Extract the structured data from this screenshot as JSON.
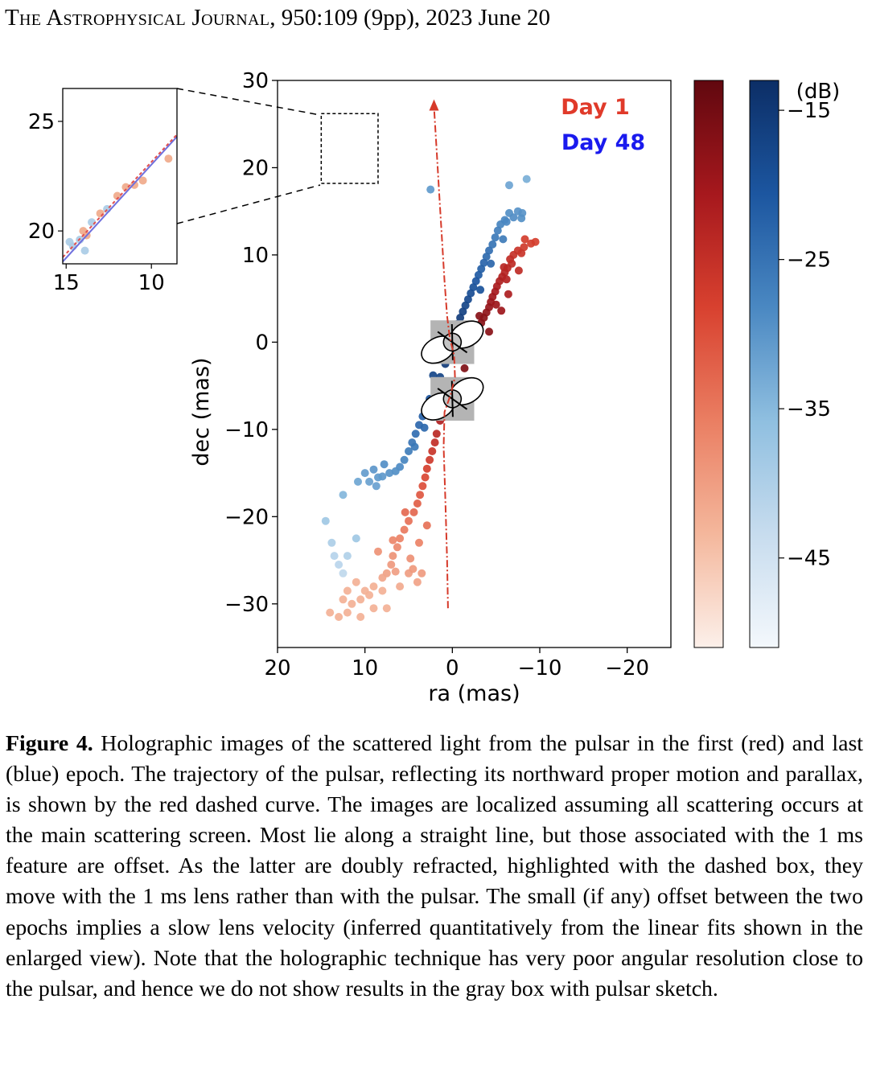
{
  "header": {
    "journal": "The Astrophysical Journal",
    "citation": ", 950:109 (9pp), 2023 June 20"
  },
  "figure": {
    "chart_data": {
      "type": "scatter",
      "xlabel": "ra (mas)",
      "ylabel": "dec (mas)",
      "xlim": [
        20,
        -25
      ],
      "ylim": [
        -35,
        30
      ],
      "xticks": [
        20,
        10,
        0,
        -10,
        -20
      ],
      "yticks": [
        30,
        20,
        10,
        0,
        -10,
        -20,
        -30
      ],
      "legend": [
        {
          "label": "Day 1",
          "color": "#e03a2a"
        },
        {
          "label": "Day 48",
          "color": "#1a1aee"
        }
      ],
      "colorbar": {
        "unit_label": "(dB)",
        "ticks": [
          -15,
          -25,
          -35,
          -45
        ],
        "range": [
          -51,
          -13
        ],
        "red_scale": [
          "#fcf0ea",
          "#f4b79c",
          "#ea7e62",
          "#d8412f",
          "#a6181d",
          "#61080f"
        ],
        "blue_scale": [
          "#f4f8fc",
          "#c7dcee",
          "#8fbfe0",
          "#4a88c2",
          "#1c56a0",
          "#0c2e66"
        ]
      },
      "series": [
        {
          "name": "Day 1",
          "points": [
            [
              -9.5,
              11.5
            ],
            [
              -9.0,
              11.3
            ],
            [
              -8.2,
              10.9
            ],
            [
              -7.5,
              10.5
            ],
            [
              -7.0,
              10.0
            ],
            [
              -6.6,
              9.5
            ],
            [
              -6.8,
              9.0
            ],
            [
              -6.3,
              8.5
            ],
            [
              -6.0,
              8.0
            ],
            [
              -5.7,
              7.5
            ],
            [
              -5.4,
              7.0
            ],
            [
              -5.1,
              6.4
            ],
            [
              -4.9,
              5.8
            ],
            [
              -4.6,
              5.2
            ],
            [
              -4.4,
              4.6
            ],
            [
              -4.2,
              4.0
            ],
            [
              -3.9,
              3.4
            ],
            [
              -3.6,
              2.8
            ],
            [
              -3.3,
              2.2
            ],
            [
              -2.9,
              1.4
            ],
            [
              -2.5,
              0.6
            ],
            [
              -2.0,
              -0.8
            ],
            [
              -1.4,
              -3.0
            ],
            [
              -0.6,
              -4.5
            ],
            [
              0.5,
              -6.0
            ],
            [
              1.3,
              -7.5
            ],
            [
              1.9,
              -8.5
            ],
            [
              1.4,
              -9.0
            ],
            [
              1.8,
              -10.5
            ],
            [
              2.0,
              -11.5
            ],
            [
              2.3,
              -12.5
            ],
            [
              2.6,
              -13.5
            ],
            [
              2.9,
              -14.5
            ],
            [
              3.1,
              -15.5
            ],
            [
              3.4,
              -16.5
            ],
            [
              3.7,
              -17.5
            ],
            [
              4.0,
              -18.5
            ],
            [
              4.4,
              -19.5
            ],
            [
              5.0,
              -20.5
            ],
            [
              5.5,
              -21.5
            ],
            [
              6.0,
              -22.5
            ],
            [
              6.3,
              -23.5
            ],
            [
              6.8,
              -24.5
            ],
            [
              7.0,
              -25.5
            ],
            [
              7.5,
              -26.5
            ],
            [
              8.0,
              -27.0
            ],
            [
              9.0,
              -28.0
            ],
            [
              10.0,
              -28.5
            ],
            [
              10.5,
              -29.5
            ],
            [
              11.5,
              -30.0
            ],
            [
              12.5,
              -29.5
            ],
            [
              12.0,
              -31.0
            ],
            [
              13.0,
              -31.5
            ],
            [
              14.0,
              -31.0
            ],
            [
              9.5,
              -29.0
            ],
            [
              8.0,
              -28.5
            ],
            [
              6.0,
              -28.0
            ],
            [
              5.0,
              -26.5
            ],
            [
              4.5,
              -26.0
            ],
            [
              7.5,
              -30.5
            ],
            [
              3.5,
              -26.5
            ],
            [
              4.0,
              -27.5
            ],
            [
              9.0,
              -30.5
            ],
            [
              10.5,
              -31.5
            ],
            [
              12.0,
              -28.5
            ],
            [
              11.0,
              -27.5
            ],
            [
              -6.2,
              7.2
            ],
            [
              -5.9,
              8.6
            ],
            [
              -7.6,
              8.2
            ],
            [
              -8.3,
              11.8
            ],
            [
              -6.4,
              5.5
            ],
            [
              -5.0,
              4.3
            ],
            [
              -3.1,
              3.0
            ],
            [
              -2.6,
              1.9
            ],
            [
              -7.9,
              10.2
            ],
            [
              -4.2,
              1.2
            ],
            [
              -5.6,
              3.6
            ],
            [
              2.9,
              -21.0
            ],
            [
              5.4,
              -19.5
            ],
            [
              6.8,
              -22.7
            ],
            [
              8.5,
              -24.0
            ],
            [
              3.8,
              -23.0
            ],
            [
              4.8,
              -24.8
            ],
            [
              6.5,
              -26.3
            ]
          ]
        },
        {
          "name": "Day 48",
          "points": [
            [
              -8.0,
              14.8
            ],
            [
              -7.5,
              15.0
            ],
            [
              -7.0,
              14.3
            ],
            [
              -6.5,
              14.8
            ],
            [
              -6.0,
              14.0
            ],
            [
              -5.5,
              13.5
            ],
            [
              -5.2,
              12.8
            ],
            [
              -4.9,
              12.0
            ],
            [
              -4.6,
              11.2
            ],
            [
              -4.2,
              10.5
            ],
            [
              -3.9,
              9.8
            ],
            [
              -3.6,
              9.1
            ],
            [
              -3.3,
              8.4
            ],
            [
              -3.0,
              7.7
            ],
            [
              -2.7,
              7.0
            ],
            [
              -2.4,
              6.3
            ],
            [
              -2.1,
              5.6
            ],
            [
              -1.8,
              4.9
            ],
            [
              -1.5,
              4.2
            ],
            [
              -1.2,
              3.5
            ],
            [
              -0.9,
              2.8
            ],
            [
              -0.6,
              2.1
            ],
            [
              -0.3,
              1.4
            ],
            [
              0.2,
              -1.0
            ],
            [
              0.8,
              -2.5
            ],
            [
              1.4,
              -4.0
            ],
            [
              2.0,
              -5.5
            ],
            [
              2.6,
              -6.5
            ],
            [
              3.0,
              -7.5
            ],
            [
              3.4,
              -8.5
            ],
            [
              3.8,
              -9.5
            ],
            [
              4.2,
              -10.5
            ],
            [
              4.6,
              -11.5
            ],
            [
              5.0,
              -12.5
            ],
            [
              5.5,
              -13.5
            ],
            [
              6.0,
              -14.3
            ],
            [
              6.5,
              -14.8
            ],
            [
              7.2,
              -15.0
            ],
            [
              8.0,
              -15.4
            ],
            [
              9.0,
              -14.6
            ],
            [
              10.0,
              -15.0
            ],
            [
              9.5,
              -16.0
            ],
            [
              8.5,
              -15.5
            ],
            [
              12.5,
              -17.5
            ],
            [
              14.5,
              -20.5
            ],
            [
              13.0,
              -25.5
            ],
            [
              12.0,
              -24.5
            ],
            [
              11.0,
              -22.5
            ],
            [
              12.5,
              -26.5
            ],
            [
              13.5,
              -24.5
            ],
            [
              2.5,
              17.5
            ],
            [
              -6.5,
              18.0
            ],
            [
              -8.5,
              18.7
            ],
            [
              -6.2,
              13.8
            ],
            [
              -7.9,
              14.2
            ],
            [
              -5.8,
              11.8
            ],
            [
              -4.4,
              9.0
            ],
            [
              -3.2,
              6.0
            ],
            [
              1.7,
              -5.8
            ],
            [
              2.2,
              -3.8
            ],
            [
              3.2,
              -9.8
            ],
            [
              4.3,
              -12.0
            ],
            [
              7.8,
              -14.0
            ],
            [
              8.7,
              -16.5
            ],
            [
              10.8,
              -16.0
            ],
            [
              13.8,
              -23.0
            ]
          ]
        }
      ],
      "trajectory": {
        "color": "#d63a2a",
        "points": [
          [
            0.5,
            -30.5
          ],
          [
            0.6,
            -25.0
          ],
          [
            0.8,
            -18.0
          ],
          [
            1.0,
            -12.0
          ],
          [
            0.9,
            -8.0
          ],
          [
            0.2,
            -6.0
          ],
          [
            -0.3,
            -4.0
          ],
          [
            -0.2,
            -1.5
          ],
          [
            0.3,
            0.5
          ],
          [
            0.6,
            3.0
          ],
          [
            0.9,
            7.0
          ],
          [
            1.2,
            12.0
          ],
          [
            1.5,
            17.0
          ],
          [
            1.8,
            22.0
          ],
          [
            2.1,
            27.0
          ]
        ]
      },
      "highlight_box": {
        "ra_range": [
          15,
          8.5
        ],
        "dec_range": [
          18.2,
          26.2
        ]
      },
      "pulsar_boxes": [
        {
          "ra_range": [
            2.5,
            -2.5
          ],
          "dec_range": [
            -2.5,
            2.5
          ],
          "center": [
            0,
            0
          ]
        },
        {
          "ra_range": [
            2.5,
            -2.5
          ],
          "dec_range": [
            -9,
            -4
          ],
          "center": [
            0,
            -6.5
          ]
        }
      ],
      "inset": {
        "xlim": [
          15.2,
          8.5
        ],
        "ylim": [
          18.5,
          26.5
        ],
        "xticks": [
          15,
          10
        ],
        "yticks": [
          25,
          20
        ],
        "points_day1": [
          [
            14.0,
            20.0
          ],
          [
            13.8,
            19.8
          ],
          [
            11.5,
            22.0
          ],
          [
            11.0,
            22.1
          ],
          [
            10.5,
            22.3
          ],
          [
            9.0,
            23.3
          ],
          [
            13.0,
            20.8
          ],
          [
            12.0,
            21.6
          ]
        ],
        "points_day48": [
          [
            14.6,
            19.3
          ],
          [
            14.2,
            19.6
          ],
          [
            13.5,
            20.4
          ],
          [
            12.6,
            21.0
          ],
          [
            13.9,
            19.1
          ],
          [
            14.8,
            19.5
          ]
        ],
        "fit_lines": [
          {
            "from": [
              15.2,
              18.6
            ],
            "to": [
              8.5,
              24.3
            ],
            "color": "#7070dd"
          },
          {
            "from": [
              15.2,
              18.8
            ],
            "to": [
              8.5,
              24.4
            ],
            "color": "#e05050"
          }
        ]
      }
    }
  },
  "caption": {
    "label": "Figure 4.",
    "text": " Holographic images of the scattered light from the pulsar in the first (red) and last (blue) epoch. The trajectory of the pulsar, reflecting its northward proper motion and parallax, is shown by the red dashed curve. The images are localized assuming all scattering occurs at the main scattering screen. Most lie along a straight line, but those associated with the 1 ms feature are offset. As the latter are doubly refracted, highlighted with the dashed box, they move with the 1 ms lens rather than with the pulsar. The small (if any) offset between the two epochs implies a slow lens velocity (inferred quantitatively from the linear fits shown in the enlarged view). Note that the holographic technique has very poor angular resolution close to the pulsar, and hence we do not show results in the gray box with pulsar sketch."
  }
}
